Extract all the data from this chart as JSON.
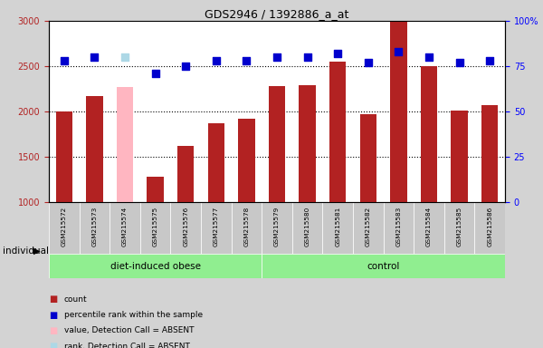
{
  "title": "GDS2946 / 1392886_a_at",
  "samples": [
    "GSM215572",
    "GSM215573",
    "GSM215574",
    "GSM215575",
    "GSM215576",
    "GSM215577",
    "GSM215578",
    "GSM215579",
    "GSM215580",
    "GSM215581",
    "GSM215582",
    "GSM215583",
    "GSM215584",
    "GSM215585",
    "GSM215586"
  ],
  "count_values": [
    2000,
    2170,
    2270,
    1280,
    1620,
    1870,
    1920,
    2280,
    2290,
    2550,
    1970,
    2990,
    2500,
    2010,
    2070
  ],
  "percentile_values": [
    78,
    80,
    80,
    71,
    75,
    78,
    78,
    80,
    80,
    82,
    77,
    83,
    80,
    77,
    78
  ],
  "absent_indices": [
    2
  ],
  "bar_color_normal": "#B22222",
  "bar_color_absent": "#FFB6C1",
  "dot_color_normal": "#0000CD",
  "dot_color_absent": "#ADD8E6",
  "ylim_left": [
    1000,
    3000
  ],
  "ylim_right": [
    0,
    100
  ],
  "yticks_left": [
    1000,
    1500,
    2000,
    2500,
    3000
  ],
  "yticks_right": [
    0,
    25,
    50,
    75,
    100
  ],
  "ytick_labels_right": [
    "0",
    "25",
    "50",
    "75",
    "100%"
  ],
  "group1_label": "diet-induced obese",
  "group1_count": 7,
  "group2_label": "control",
  "group2_count": 8,
  "individual_label": "individual",
  "legend_items": [
    {
      "label": "count",
      "color": "#B22222"
    },
    {
      "label": "percentile rank within the sample",
      "color": "#0000CD"
    },
    {
      "label": "value, Detection Call = ABSENT",
      "color": "#FFB6C1"
    },
    {
      "label": "rank, Detection Call = ABSENT",
      "color": "#ADD8E6"
    }
  ],
  "bg_color": "#D3D3D3",
  "plot_bg": "#FFFFFF",
  "group_bg": "#90EE90",
  "sample_box_bg": "#C8C8C8",
  "bar_width": 0.55,
  "dot_size": 30,
  "gridline_color": "black",
  "gridline_vals": [
    1500,
    2000,
    2500
  ]
}
